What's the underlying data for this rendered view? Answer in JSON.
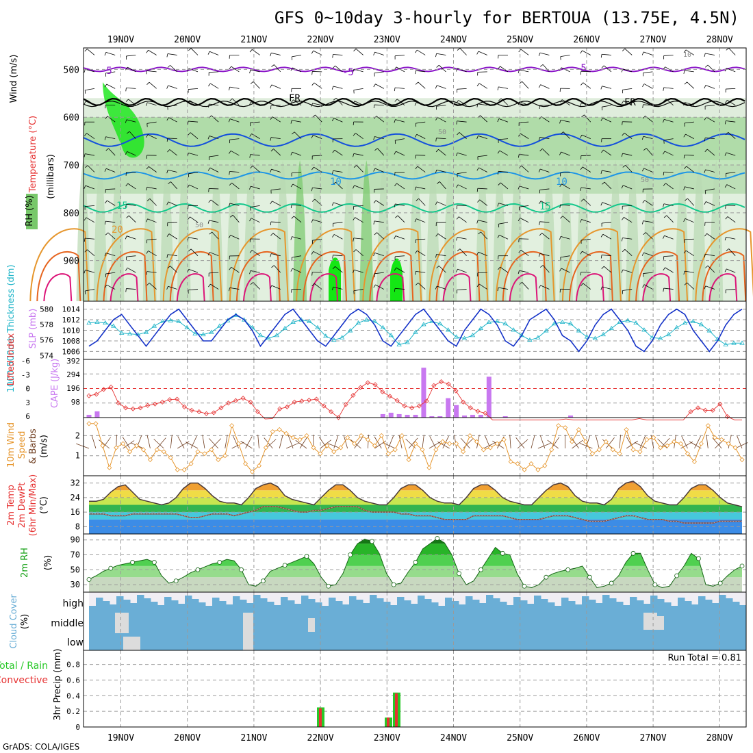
{
  "title": "GFS 0~10day 3-hourly for BERTOUA (13.75E, 4.5N)",
  "credit": "GrADS: COLA/IGES",
  "colors": {
    "frame": "#000000",
    "grid": "#9a9a9a",
    "rh_light": "#e6f5e2",
    "rh_mid": "#b9d8b2",
    "rh_green": "#78c86a",
    "rh_bright": "#14e614",
    "t_purple": "#8a14c8",
    "t_blue1": "#1450dc",
    "t_blue2": "#1e96e6",
    "t_teal": "#14c88c",
    "t_orange": "#e6962d",
    "t_dorange": "#e6641e",
    "t_pink": "#dc1478",
    "slp": "#1432c8",
    "thick": "#1eb4c8",
    "li": "#e63232",
    "cape": "#c878f0",
    "wind10": "#e6962d",
    "barb": "#6e3c1e",
    "rain": "#e63232",
    "total": "#28c828",
    "cloud": "#6aaed6",
    "cloud_bg": "#f0eef4"
  },
  "chart_data": [
    {
      "panel": "upper-air",
      "type": "heatmap",
      "legend_labels": [
        "Wind (m/s)",
        "Temperature (°C)",
        "RH (%)"
      ],
      "ylabel": "(millibars)",
      "y_ticks": [
        500,
        600,
        700,
        800,
        900
      ],
      "x_ticks": [
        "19NOV",
        "20NOV",
        "21NOV",
        "22NOV",
        "23NOV",
        "24NOV",
        "25NOV",
        "26NOV",
        "27NOV",
        "28NOV"
      ],
      "contour_labels": [
        "-5",
        "-5",
        "-5",
        "FR",
        "FR",
        "10",
        "10",
        "15",
        "15",
        "20",
        "50",
        "50",
        "50",
        "10"
      ]
    },
    {
      "panel": "slp-thickness",
      "type": "line",
      "label_left": "1000-500mb Thickness (dm)",
      "label_right": "SLP (mb)",
      "left_ticks": [
        "580",
        "578",
        "576",
        "574"
      ],
      "right_ticks": [
        "1014",
        "1012",
        "1010",
        "1008",
        "1006"
      ],
      "series": [
        {
          "name": "SLP (mb)",
          "values": [
            1007,
            1008,
            1010,
            1012,
            1013,
            1011,
            1009,
            1007,
            1009,
            1011,
            1013,
            1014,
            1012,
            1010,
            1008,
            1008,
            1010,
            1012,
            1013,
            1012,
            1010,
            1007,
            1009,
            1011,
            1013,
            1014,
            1012,
            1010,
            1008,
            1007,
            1009,
            1011,
            1013,
            1014,
            1013,
            1011,
            1008,
            1007,
            1009,
            1011,
            1013,
            1014,
            1012,
            1010,
            1008,
            1007,
            1010,
            1012,
            1014,
            1013,
            1011,
            1008,
            1007,
            1009,
            1012,
            1013,
            1014,
            1012,
            1009,
            1008,
            1006,
            1008,
            1011,
            1013,
            1014,
            1012,
            1010,
            1007,
            1006,
            1008,
            1011,
            1013,
            1014,
            1013,
            1010,
            1008,
            1006,
            1008,
            1011,
            1013,
            1014
          ]
        },
        {
          "name": "1000-500mb Thickness (dm)",
          "values": [
            578.2,
            578.3,
            578.2,
            577.8,
            576.9,
            576.8,
            576.7,
            577.0,
            577.8,
            578.4,
            578.5,
            578.4,
            577.6,
            576.8,
            576.7,
            577.0,
            577.8,
            578.5,
            579.2,
            578.6,
            577.6,
            576.6,
            576.2,
            576.6,
            577.5,
            578.3,
            578.6,
            578.4,
            577.6,
            576.5,
            576.0,
            576.3,
            577.2,
            578.2,
            578.6,
            578.4,
            577.6,
            576.6,
            575.4,
            575.7,
            577.0,
            578.0,
            578.4,
            578.1,
            577.3,
            576.4,
            576.2,
            576.6,
            577.5,
            578.3,
            578.4,
            578.1,
            577.3,
            576.6,
            576.0,
            576.3,
            577.2,
            578.1,
            578.3,
            578.1,
            577.2,
            576.4,
            576.2,
            576.7,
            577.5,
            578.3,
            578.5,
            578.2,
            577.3,
            576.3,
            576.2,
            576.7,
            577.6,
            578.2,
            578.4,
            578.0,
            577.2,
            576.1,
            575.4,
            575.6,
            575.6
          ]
        }
      ]
    },
    {
      "panel": "lifted-index-cape",
      "type": "bar",
      "label_left": "Lifted Index",
      "label_right": "CAPE (J/kg)",
      "left_ticks": [
        "-6",
        "-3",
        "0",
        "3",
        "6"
      ],
      "right_ticks": [
        "392",
        "294",
        "196",
        "98"
      ],
      "series": [
        {
          "name": "Lifted Index",
          "values": [
            1.5,
            1.2,
            0.2,
            -0.3,
            3.0,
            4.0,
            4.2,
            4.0,
            3.5,
            3.2,
            2.8,
            2.3,
            2.2,
            3.8,
            4.5,
            4.8,
            5.2,
            5.0,
            4.0,
            3.0,
            2.5,
            2.0,
            2.8,
            4.8,
            6.3,
            6.2,
            4.2,
            3.8,
            2.8,
            2.6,
            2.4,
            2.2,
            3.6,
            4.8,
            6.0,
            3.3,
            1.4,
            -0.2,
            -1.2,
            -0.8,
            0.7,
            1.6,
            2.5,
            3.6,
            4.0,
            3.6,
            2.6,
            -0.6,
            -1.4,
            -0.9,
            0.5,
            2.8,
            4.0,
            4.7,
            5.1,
            6.8,
            7.0,
            6.5,
            6.8,
            6.8,
            7.2,
            7.5,
            7.2,
            7.5,
            6.8,
            6.3,
            7.0,
            7.5,
            7.0,
            7.0,
            6.8,
            7.2,
            7.2,
            6.8,
            6.5,
            6.2,
            6.8,
            6.8,
            7.0,
            7.2,
            6.5,
            6.8,
            4.8,
            4.0,
            4.5,
            4.5,
            3.2,
            5.8,
            7.0,
            7.0
          ]
        },
        {
          "name": "CAPE (J/kg)",
          "values": [
            20,
            45,
            0,
            0,
            0,
            0,
            0,
            0,
            0,
            0,
            0,
            0,
            0,
            0,
            0,
            0,
            0,
            0,
            0,
            0,
            0,
            0,
            0,
            0,
            0,
            0,
            0,
            0,
            0,
            0,
            0,
            0,
            0,
            0,
            0,
            0,
            25,
            35,
            25,
            20,
            20,
            360,
            10,
            10,
            140,
            90,
            15,
            20,
            20,
            295,
            0,
            10,
            0,
            0,
            0,
            0,
            0,
            0,
            0,
            15,
            0,
            0,
            0,
            0,
            0,
            0,
            0,
            0,
            0,
            0,
            0,
            0,
            0,
            0,
            0,
            0,
            0,
            0,
            0,
            0,
            0
          ]
        }
      ]
    },
    {
      "panel": "10m-wind",
      "type": "line",
      "label": "10m Wind Speed & Barbs (m/s)",
      "y_ticks": [
        "2",
        "1"
      ],
      "series": [
        {
          "name": "10m Wind Speed",
          "values": [
            2.6,
            2.6,
            1.5,
            0.4,
            1.4,
            1.6,
            1.2,
            1.5,
            1.3,
            0.8,
            1.3,
            1.2,
            0.9,
            0.3,
            0.3,
            0.6,
            1.2,
            1.1,
            1.3,
            0.8,
            1.0,
            2.5,
            1.6,
            0.6,
            0.2,
            0.5,
            1.4,
            2.2,
            2.3,
            2.1,
            1.9,
            1.8,
            2.0,
            1.4,
            1.1,
            1.5,
            1.2,
            1.4,
            1.9,
            1.6,
            2.0,
            1.8,
            1.5,
            2.0,
            1.1,
            1.3,
            2.0,
            0.8,
            1.6,
            1.3,
            0.4,
            1.3,
            1.7,
            1.6,
            1.6,
            1.2,
            2.0,
            1.7,
            1.3,
            1.4,
            1.6,
            1.8,
            0.7,
            0.6,
            0.3,
            0.6,
            0.3,
            0.5,
            1.3,
            2.5,
            2.4,
            1.7,
            2.3,
            1.7,
            1.1,
            1.3,
            1.7,
            1.3,
            1.1,
            2.3,
            1.3,
            1.2,
            1.8,
            1.9,
            1.4,
            1.5,
            1.7,
            1.6,
            1.1,
            0.7,
            1.6,
            2.5,
            1.9,
            1.8,
            1.6,
            1.4,
            0.8
          ]
        }
      ]
    },
    {
      "panel": "2m-temp",
      "type": "area",
      "label": "2m Temp 2m DewPt (6hr Min/Max) (°C)",
      "y_ticks": [
        "32",
        "24",
        "16",
        "8"
      ],
      "series": [
        {
          "name": "2m Temp",
          "values": [
            22,
            22,
            23,
            27,
            30,
            31,
            27,
            23,
            22,
            21,
            20,
            21,
            24,
            29,
            32,
            32,
            29,
            25,
            22,
            21,
            21,
            20,
            24,
            29,
            31,
            32,
            30,
            25,
            23,
            22,
            21,
            20,
            24,
            28,
            31,
            31,
            28,
            24,
            22,
            21,
            20,
            20,
            24,
            29,
            31,
            31,
            28,
            24,
            22,
            21,
            21,
            20,
            24,
            29,
            31,
            31,
            28,
            24,
            22,
            21,
            20,
            20,
            24,
            28,
            31,
            32,
            30,
            25,
            22,
            21,
            21,
            20,
            23,
            29,
            32,
            33,
            30,
            25,
            22,
            21,
            20,
            20,
            24,
            29,
            31,
            31,
            28,
            24,
            21,
            20,
            19
          ]
        },
        {
          "name": "2m DewPt",
          "values": [
            15,
            15,
            15,
            14,
            14,
            14,
            15,
            15,
            15,
            15,
            15,
            15,
            15,
            14,
            13,
            13,
            14,
            15,
            15,
            15,
            14,
            15,
            16,
            17,
            19,
            19,
            19,
            18,
            17,
            16,
            16,
            17,
            17,
            18,
            19,
            19,
            19,
            19,
            17,
            16,
            16,
            16,
            16,
            15,
            15,
            14,
            14,
            14,
            13,
            12,
            12,
            12,
            12,
            14,
            14,
            14,
            14,
            14,
            13,
            12,
            12,
            12,
            12,
            13,
            14,
            14,
            14,
            13,
            12,
            11,
            11,
            11,
            12,
            13,
            14,
            14,
            13,
            12,
            12,
            12,
            11,
            11,
            10,
            10,
            10,
            10,
            10,
            11,
            11,
            11,
            11
          ]
        }
      ]
    },
    {
      "panel": "2m-rh",
      "type": "area",
      "label": "2m RH (%)",
      "y_ticks": [
        "90",
        "70",
        "50",
        "30"
      ],
      "series": [
        {
          "name": "2m RH",
          "values": [
            37,
            42,
            48,
            52,
            56,
            58,
            60,
            62,
            64,
            60,
            42,
            32,
            35,
            40,
            46,
            50,
            54,
            58,
            60,
            64,
            62,
            50,
            30,
            28,
            35,
            48,
            52,
            56,
            60,
            64,
            68,
            58,
            40,
            28,
            30,
            45,
            70,
            85,
            91,
            88,
            72,
            45,
            30,
            32,
            47,
            60,
            78,
            85,
            92,
            86,
            70,
            45,
            30,
            35,
            50,
            65,
            80,
            72,
            70,
            45,
            28,
            26,
            30,
            40,
            45,
            48,
            50,
            52,
            55,
            40,
            26,
            28,
            32,
            42,
            60,
            72,
            72,
            50,
            30,
            26,
            28,
            42,
            55,
            72,
            65,
            30,
            28,
            32,
            42,
            50,
            55
          ]
        }
      ]
    },
    {
      "panel": "cloud-cover",
      "type": "heatmap",
      "label": "Cloud Cover (%)",
      "rows": [
        "high",
        "middle",
        "low"
      ]
    },
    {
      "panel": "precip",
      "type": "bar",
      "label_left": "Total / Rain",
      "label_right": "Convective",
      "ylabel": "3hr Precip (mm)",
      "y_ticks": [
        "0.8",
        "0.6",
        "0.4",
        "0.2",
        "0"
      ],
      "annotation": "Run Total = 0.81",
      "series": [
        {
          "name": "Total / Rain",
          "bars": [
            {
              "x": "22NOV 00Z",
              "value": 0.25
            },
            {
              "x": "23NOV 00Z",
              "value": 0.12
            },
            {
              "x": "23NOV 03Z",
              "value": 0.44
            }
          ]
        },
        {
          "name": "Convective",
          "bars": [
            {
              "x": "22NOV 00Z",
              "value": 0.24
            },
            {
              "x": "23NOV 00Z",
              "value": 0.12
            },
            {
              "x": "23NOV 03Z",
              "value": 0.43
            }
          ]
        }
      ]
    }
  ]
}
